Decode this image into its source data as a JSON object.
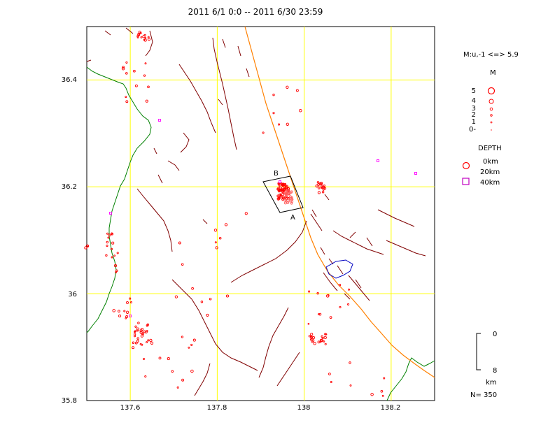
{
  "title": "2011 6/1 0:0 -- 2011 6/30 23:59",
  "map": {
    "lon_range": [
      137.5,
      138.3
    ],
    "lat_range": [
      35.8,
      36.5
    ],
    "lon_tick_labels": [
      "137.6",
      "137.8",
      "138",
      "138.2"
    ],
    "lat_tick_labels": [
      "36.4",
      "36.2",
      "36",
      "35.8"
    ],
    "region_markers": [
      "A",
      "B"
    ]
  },
  "legend": {
    "magnitude_range": "M:u,-1 <=> 5.9",
    "magnitude_header": "M",
    "magnitude_labels": [
      "5",
      "4",
      "3",
      "2",
      "1",
      "0-"
    ],
    "depth_header": "DEPTH",
    "depth_labels": [
      "0km",
      "20km",
      "40km"
    ]
  },
  "depth_scale": {
    "top_label": "0",
    "bottom_label": "8",
    "unit": "km"
  },
  "count_label": "N= 350",
  "colors": {
    "grid": "#ffff00",
    "fault": "#800000",
    "prefecture_border": "#008000",
    "tectonic_line": "#ff8000",
    "lake": "#0000c0",
    "shallow_event": "#ff0000",
    "deep_event": "#ff00ff",
    "mid_event": "#ff6060"
  }
}
